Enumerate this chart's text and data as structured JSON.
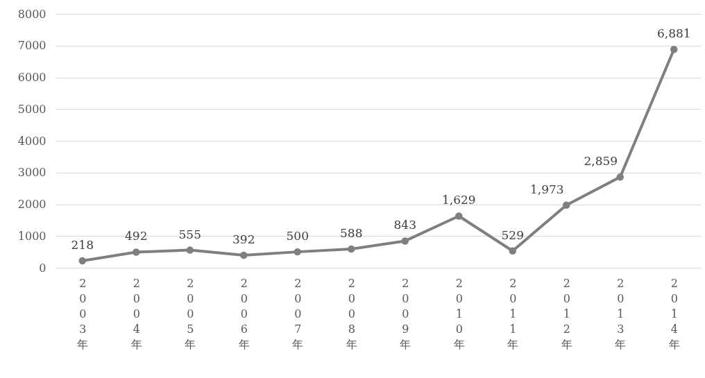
{
  "chart_data": {
    "type": "line",
    "categories": [
      "2003年",
      "2004年",
      "2005年",
      "2006年",
      "2007年",
      "2008年",
      "2009年",
      "2010年",
      "2011年",
      "2012年",
      "2013年",
      "2014年"
    ],
    "series": [
      {
        "color": "#7f7f7f",
        "values": [
          218,
          492,
          555,
          392,
          500,
          588,
          843,
          1629,
          529,
          1973,
          2859,
          6881
        ],
        "value_labels": [
          "218",
          "492",
          "555",
          "392",
          "500",
          "588",
          "843",
          "1,629",
          "529",
          "1,973",
          "2,859",
          "6,881"
        ]
      }
    ],
    "ylim": [
      0,
      8000
    ],
    "yticks": [
      0,
      1000,
      2000,
      3000,
      4000,
      5000,
      6000,
      7000,
      8000
    ],
    "grid": "y",
    "marker": "circle",
    "line_style": "solid"
  }
}
